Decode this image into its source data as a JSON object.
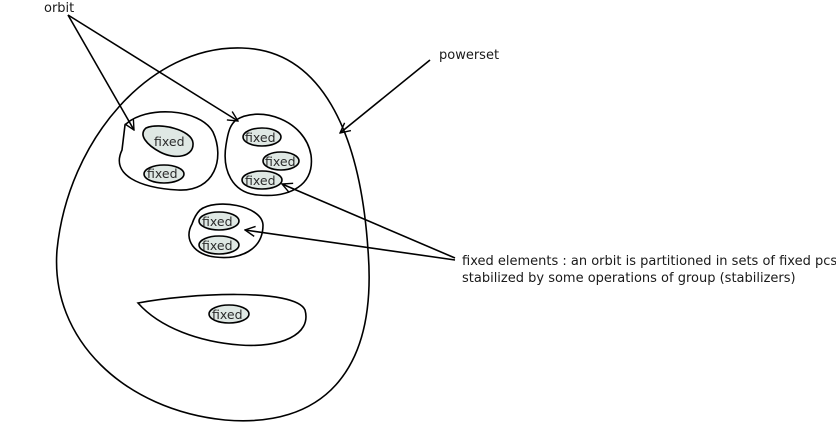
{
  "labels": {
    "orbit": "orbit",
    "powerset": "powerset",
    "fixed_note_line1": "fixed elements : an orbit is partitioned in sets of fixed pcs",
    "fixed_note_line2": "stabilized by some operations of group (stabilizers)"
  },
  "fixed_label": "fixed",
  "colors": {
    "stroke": "#000000",
    "blob_fill": "#dfe8e4",
    "background": "#ffffff"
  }
}
